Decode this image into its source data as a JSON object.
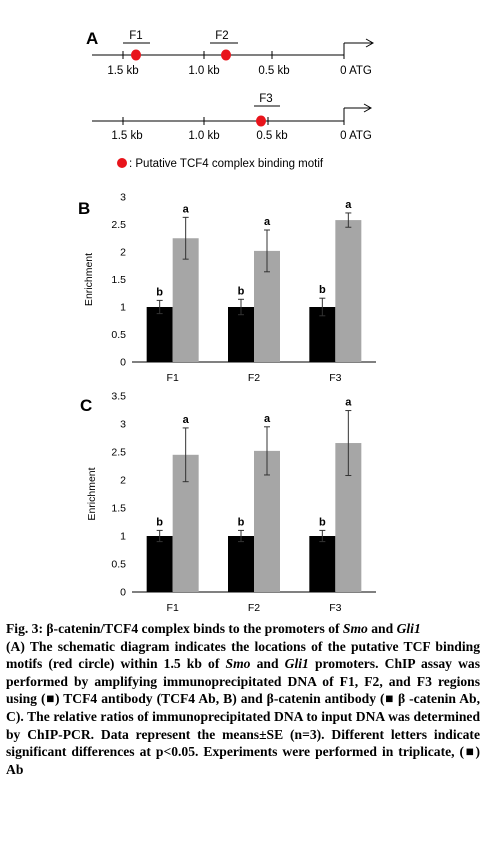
{
  "panel_a": {
    "letter": "A",
    "line1": {
      "ticks": [
        "1.5 kb",
        "1.0 kb",
        "0.5 kb",
        "0 ATG"
      ],
      "fragments": [
        "F1",
        "F2"
      ]
    },
    "line2": {
      "ticks": [
        "1.5 kb",
        "1.0 kb",
        "0.5 kb",
        "0 ATG"
      ],
      "fragments": [
        "F3"
      ]
    },
    "legend_text": ": Putative TCF4 complex binding motif",
    "motif_color": "#e8141b"
  },
  "chart_data": [
    {
      "type": "bar",
      "panel": "B",
      "categories": [
        "F1",
        "F2",
        "F3"
      ],
      "ylabel": "Enrichment",
      "ylim": [
        0,
        3
      ],
      "yticks": [
        "0",
        "0.5",
        "1",
        "1.5",
        "2",
        "2.5",
        "3"
      ],
      "grid": false,
      "series": [
        {
          "color": "#000000",
          "values": [
            1.0,
            1.0,
            1.0
          ],
          "errors": [
            0.12,
            0.14,
            0.16
          ],
          "letters": [
            "b",
            "b",
            "b"
          ]
        },
        {
          "color": "#a6a6a6",
          "values": [
            2.25,
            2.02,
            2.58
          ],
          "errors": [
            0.38,
            0.38,
            0.13
          ],
          "letters": [
            "a",
            "a",
            "a"
          ]
        }
      ]
    },
    {
      "type": "bar",
      "panel": "C",
      "categories": [
        "F1",
        "F2",
        "F3"
      ],
      "ylabel": "Enrichment",
      "ylim": [
        0,
        3.5
      ],
      "yticks": [
        "0",
        "0.5",
        "1",
        "1.5",
        "2",
        "2.5",
        "3",
        "3.5"
      ],
      "grid": false,
      "series": [
        {
          "color": "#000000",
          "values": [
            1.0,
            1.0,
            1.0
          ],
          "errors": [
            0.1,
            0.1,
            0.1
          ],
          "letters": [
            "b",
            "b",
            "b"
          ]
        },
        {
          "color": "#a6a6a6",
          "values": [
            2.45,
            2.52,
            2.66
          ],
          "errors": [
            0.48,
            0.43,
            0.58
          ],
          "letters": [
            "a",
            "a",
            "a"
          ]
        }
      ]
    }
  ],
  "caption": {
    "title_prefix": "Fig. 3: β-catenin/TCF4 complex binds to the promoters of ",
    "gene1": "Smo",
    "title_mid": " and ",
    "gene2": "Gli1",
    "body_1": "(A) The schematic diagram indicates the locations of the putative TCF binding motifs (red circle) within 1.5 kb of ",
    "body_gene1": "Smo",
    "body_2": " and ",
    "body_gene2": "Gli1",
    "body_3": " promoters. ChIP assay was performed by amplifying immunoprecipitated DNA of F1, F2, and F3 regions using (■) TCF4 antibody (TCF4 Ab, B) and β-catenin antibody (■ β -catenin Ab, C). The relative ratios of immunoprecipitated DNA to input DNA was determined by ChIP-PCR. Data represent the means±SE (n=3). Different letters indicate significant differences at p<0.05. Experiments were performed in triplicate, (■) Ab"
  }
}
